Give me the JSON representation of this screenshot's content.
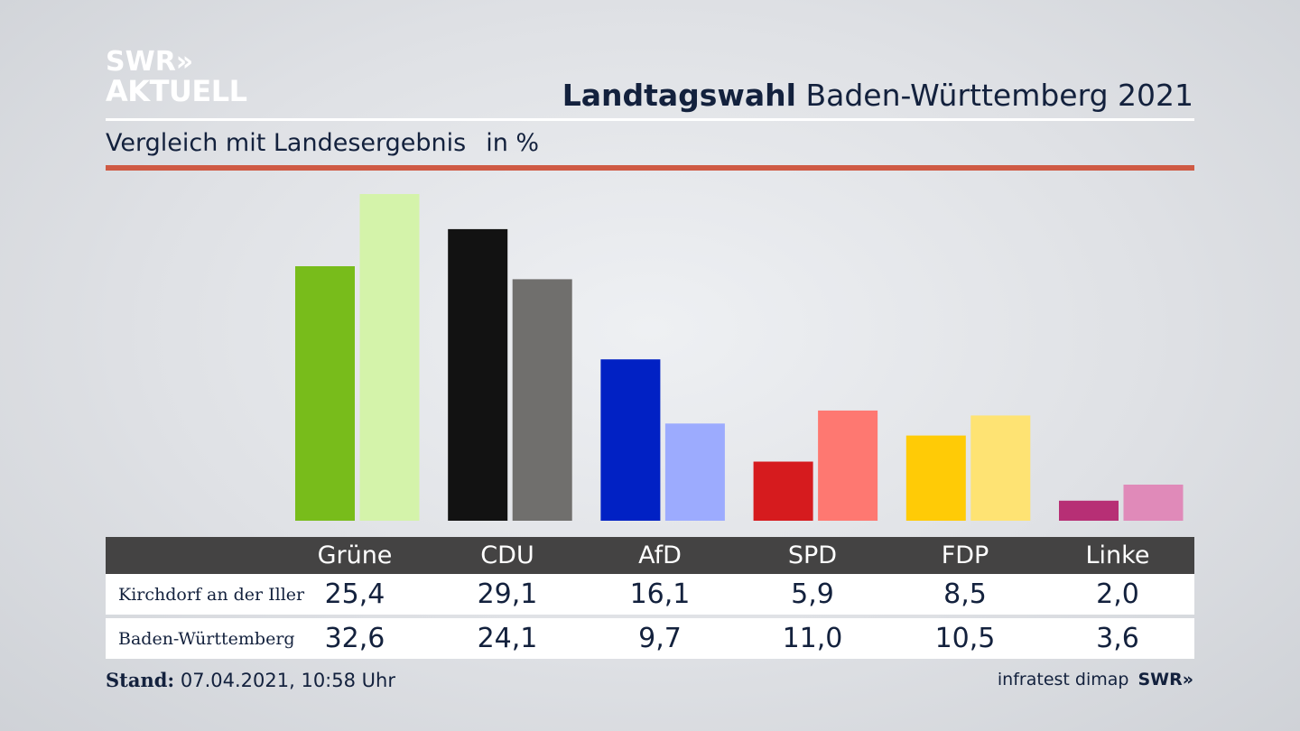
{
  "brand": {
    "line1": "SWR»",
    "line2": "AKTUELL"
  },
  "header": {
    "title_bold": "Landtagswahl",
    "title_rest": "Baden-Württemberg 2021"
  },
  "subtitle": {
    "text": "Vergleich mit Landesergebnis",
    "unit": "in %"
  },
  "chart_data": {
    "type": "bar",
    "categories": [
      "Grüne",
      "CDU",
      "AfD",
      "SPD",
      "FDP",
      "Linke"
    ],
    "series": [
      {
        "name": "Kirchdorf an der Iller",
        "values": [
          25.4,
          29.1,
          16.1,
          5.9,
          8.5,
          2.0
        ],
        "colors": [
          "#78bc1b",
          "#121212",
          "#0121c4",
          "#d61b1e",
          "#ffcb06",
          "#b72f75"
        ]
      },
      {
        "name": "Baden-Württemberg",
        "values": [
          32.6,
          24.1,
          9.7,
          11.0,
          10.5,
          3.6
        ],
        "colors": [
          "#d4f3aa",
          "#706f6d",
          "#9cabfe",
          "#fe7871",
          "#fee373",
          "#e08ab9"
        ]
      }
    ],
    "ylim": [
      0,
      32.6
    ],
    "grid": false
  },
  "table": {
    "headers": [
      "Grüne",
      "CDU",
      "AfD",
      "SPD",
      "FDP",
      "Linke"
    ],
    "rows": [
      {
        "label": "Kirchdorf an der Iller",
        "values": [
          "25,4",
          "29,1",
          "16,1",
          "5,9",
          "8,5",
          "2,0"
        ]
      },
      {
        "label": "Baden-Württemberg",
        "values": [
          "32,6",
          "24,1",
          "9,7",
          "11,0",
          "10,5",
          "3,6"
        ]
      }
    ]
  },
  "footer": {
    "stand_label": "Stand:",
    "stand_value": "07.04.2021, 10:58 Uhr",
    "source": "infratest dimap",
    "source_brand": "SWR»"
  }
}
